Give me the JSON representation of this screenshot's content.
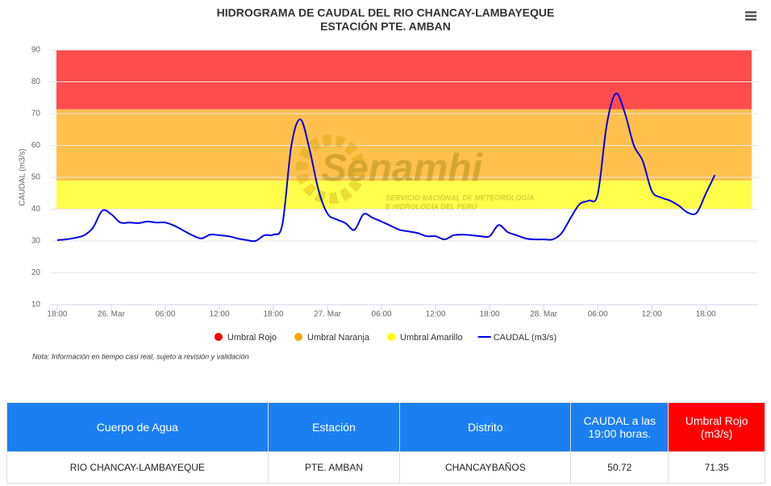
{
  "chart_data": {
    "type": "line",
    "title": "HIDROGRAMA DE CAUDAL DEL RIO CHANCAY-LAMBAYEQUE",
    "subtitle": "ESTACIÓN PTE. AMBAN",
    "y_label": "CAUDAL (m3/s)",
    "note": "Nota: Información en tiempo casi real, sujeto a revisión y validación",
    "watermark": {
      "name": "Senamhi",
      "lines": [
        "SERVICIO NACIONAL DE METEOROLOGÍA",
        "E HIDROLOGÍA DEL PERÚ"
      ]
    },
    "xlim": [
      -0.8,
      77.8
    ],
    "xticks": [
      {
        "value": 0,
        "label": "18:00"
      },
      {
        "value": 6,
        "label": "26. Mar"
      },
      {
        "value": 12,
        "label": "06:00"
      },
      {
        "value": 18,
        "label": "12:00"
      },
      {
        "value": 24,
        "label": "18:00"
      },
      {
        "value": 30,
        "label": "27. Mar"
      },
      {
        "value": 36,
        "label": "06:00"
      },
      {
        "value": 42,
        "label": "12:00"
      },
      {
        "value": 48,
        "label": "18:00"
      },
      {
        "value": 54,
        "label": "28. Mar"
      },
      {
        "value": 60,
        "label": "06:00"
      },
      {
        "value": 66,
        "label": "12:00"
      },
      {
        "value": 72,
        "label": "18:00"
      }
    ],
    "ylim": [
      10,
      90
    ],
    "yticks": [
      10,
      20,
      30,
      40,
      50,
      60,
      70,
      80,
      90
    ],
    "grid": true,
    "thresholds": [
      {
        "name": "Umbral Rojo",
        "color": "#ff0000",
        "value": 71.35
      },
      {
        "name": "Umbral Naranja",
        "color": "#ffa500",
        "value": 49
      },
      {
        "name": "Umbral Amarillo",
        "color": "#ffff00",
        "value": 40
      }
    ],
    "series": [
      {
        "name": "CAUDAL (m3/s)",
        "color": "#0000e6",
        "x": [
          0,
          1,
          2,
          3,
          4,
          5,
          6,
          7,
          8,
          9,
          10,
          11,
          12,
          13,
          14,
          15,
          16,
          17,
          18,
          19,
          20,
          21,
          22,
          23,
          24,
          25,
          26,
          27,
          28,
          29,
          30,
          31,
          32,
          33,
          34,
          35,
          36,
          37,
          38,
          39,
          40,
          41,
          42,
          43,
          44,
          45,
          46,
          47,
          48,
          49,
          50,
          51,
          52,
          53,
          54,
          55,
          56,
          57,
          58,
          59,
          60,
          61,
          62,
          63,
          64,
          65,
          66,
          67,
          68,
          69,
          70,
          71,
          72,
          73
        ],
        "values": [
          30.3,
          30.5,
          31,
          31.8,
          34.3,
          39.5,
          38.4,
          35.8,
          35.8,
          35.6,
          36.1,
          35.8,
          35.8,
          34.8,
          33.3,
          31.8,
          30.8,
          32,
          31.8,
          31.5,
          30.8,
          30.3,
          30,
          31.8,
          32,
          35.3,
          60.1,
          68.2,
          58.9,
          46,
          38.6,
          36.8,
          35.6,
          33.5,
          38.4,
          37.3,
          36.1,
          34.8,
          33.5,
          33,
          32.5,
          31.5,
          31.5,
          30.5,
          31.8,
          32,
          31.8,
          31.5,
          31.5,
          35,
          32.8,
          31.8,
          30.8,
          30.5,
          30.5,
          30.5,
          32.5,
          37.3,
          41.6,
          42.7,
          44.7,
          66.5,
          76.3,
          70.3,
          60.1,
          55.1,
          45.7,
          43.7,
          42.7,
          41.1,
          38.9,
          38.9,
          44.9,
          50.72
        ]
      }
    ]
  },
  "table": {
    "headers": [
      "Cuerpo de Agua",
      "Estación",
      "Distrito",
      "CAUDAL a las 19:00 horas.",
      "Umbral Rojo (m3/s)"
    ],
    "rows": [
      [
        "RIO CHANCAY-LAMBAYEQUE",
        "PTE. AMBAN",
        "CHANCAYBAÑOS",
        50.72,
        71.35
      ]
    ]
  }
}
